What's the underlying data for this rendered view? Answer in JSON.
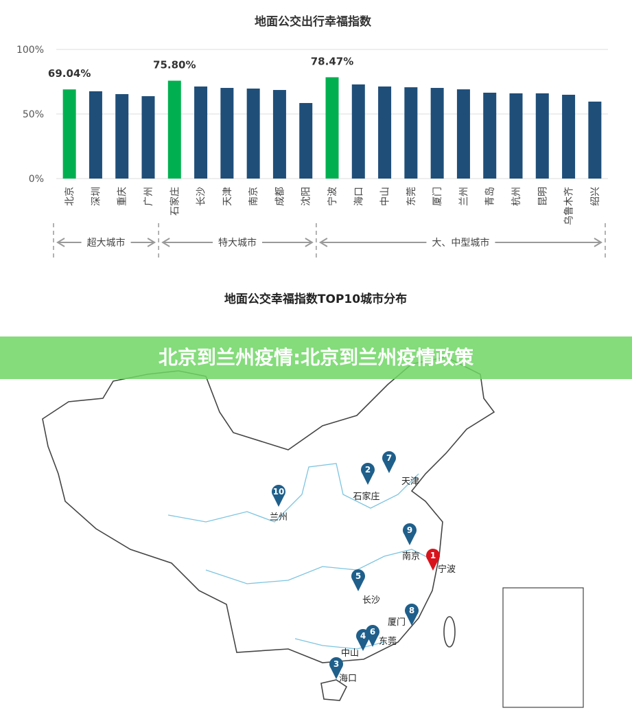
{
  "chart_data": {
    "type": "bar",
    "title": "地面公交出行幸福指数",
    "categories": [
      "北京",
      "深圳",
      "重庆",
      "广州",
      "石家庄",
      "长沙",
      "天津",
      "南京",
      "成都",
      "沈阳",
      "宁波",
      "海口",
      "中山",
      "东莞",
      "厦门",
      "兰州",
      "青岛",
      "杭州",
      "昆明",
      "乌鲁木齐",
      "绍兴"
    ],
    "values": [
      69.04,
      67.6,
      65.4,
      63.8,
      75.8,
      71.3,
      70.2,
      69.7,
      68.6,
      58.5,
      78.47,
      72.9,
      71.3,
      70.7,
      70.2,
      69.1,
      66.5,
      66,
      66,
      64.9,
      59.6
    ],
    "value_labels": [
      "69.04%",
      null,
      null,
      null,
      "75.80%",
      null,
      null,
      null,
      null,
      null,
      "78.47%",
      null,
      null,
      null,
      null,
      null,
      null,
      null,
      null,
      null,
      null
    ],
    "colors": [
      "#00b050",
      "#1f4e79",
      "#1f4e79",
      "#1f4e79",
      "#00b050",
      "#1f4e79",
      "#1f4e79",
      "#1f4e79",
      "#1f4e79",
      "#1f4e79",
      "#00b050",
      "#1f4e79",
      "#1f4e79",
      "#1f4e79",
      "#1f4e79",
      "#1f4e79",
      "#1f4e79",
      "#1f4e79",
      "#1f4e79",
      "#1f4e79",
      "#1f4e79"
    ],
    "ylim": [
      0,
      100
    ],
    "yticks": [
      {
        "value": 0,
        "label": "0%"
      },
      {
        "value": 50,
        "label": "50%"
      },
      {
        "value": 100,
        "label": "100%"
      }
    ],
    "grid": true,
    "groups": [
      {
        "label": "超大城市",
        "first": "北京",
        "last": "广州"
      },
      {
        "label": "特大城市",
        "first": "石家庄",
        "last": "沈阳"
      },
      {
        "label": "大、中型城市",
        "first": "宁波",
        "last": "绍兴"
      }
    ]
  },
  "map": {
    "title": "地面公交幸福指数TOP10城市分布",
    "markers": [
      {
        "rank": "1",
        "city": "宁波"
      },
      {
        "rank": "2",
        "city": "石家庄"
      },
      {
        "rank": "3",
        "city": "海口"
      },
      {
        "rank": "4",
        "city": "中山"
      },
      {
        "rank": "5",
        "city": "长沙"
      },
      {
        "rank": "6",
        "city": "东莞"
      },
      {
        "rank": "7",
        "city": "天津"
      },
      {
        "rank": "8",
        "city": "厦门"
      },
      {
        "rank": "9",
        "city": "南京"
      },
      {
        "rank": "10",
        "city": "兰州"
      }
    ]
  },
  "banner": {
    "text": "北京到兰州疫情:北京到兰州疫情政策"
  }
}
